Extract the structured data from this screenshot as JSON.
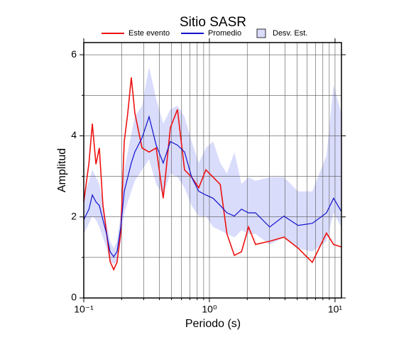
{
  "chart_data": {
    "type": "line",
    "title": "Sitio SASR",
    "xlabel": "Periodo (s)",
    "ylabel": "Amplitud",
    "xscale": "log",
    "grid": true,
    "x": [
      0.1,
      0.11,
      0.117,
      0.125,
      0.133,
      0.142,
      0.152,
      0.162,
      0.173,
      0.184,
      0.197,
      0.21,
      0.224,
      0.239,
      0.255,
      0.291,
      0.331,
      0.377,
      0.429,
      0.489,
      0.557,
      0.634,
      0.722,
      0.823,
      0.937,
      1.07,
      1.22,
      1.38,
      1.58,
      1.8,
      2.05,
      2.33,
      3.02,
      3.92,
      5.08,
      6.59,
      8.55,
      9.74,
      11.2
    ],
    "series": [
      {
        "name": "Este evento",
        "color": "#ee1111",
        "values": [
          2.37,
          3.33,
          4.3,
          3.3,
          3.7,
          2.3,
          1.6,
          0.9,
          0.7,
          0.88,
          1.6,
          3.86,
          4.56,
          5.44,
          4.56,
          3.7,
          3.6,
          3.7,
          2.46,
          4.2,
          4.65,
          3.16,
          2.98,
          2.72,
          3.16,
          2.98,
          2.8,
          1.58,
          1.05,
          1.14,
          1.75,
          1.32,
          1.4,
          1.5,
          1.23,
          0.88,
          1.6,
          1.32,
          1.26
        ]
      },
      {
        "name": "Promedio",
        "color": "#1111cc",
        "values": [
          1.93,
          2.19,
          2.54,
          2.37,
          2.28,
          1.93,
          1.58,
          1.14,
          1.02,
          1.14,
          1.75,
          2.63,
          2.98,
          3.33,
          3.6,
          3.95,
          4.47,
          3.77,
          3.33,
          3.86,
          3.77,
          3.6,
          2.98,
          2.63,
          2.54,
          2.46,
          2.28,
          2.1,
          2.02,
          2.19,
          2.1,
          2.1,
          1.75,
          2.02,
          1.79,
          1.84,
          2.1,
          2.46,
          2.14
        ]
      },
      {
        "name": "Desv. Est.",
        "color": "#d9dcfb",
        "lower": [
          1.58,
          1.84,
          2.02,
          1.93,
          1.75,
          1.49,
          1.23,
          0.91,
          0.84,
          0.91,
          1.4,
          2.1,
          2.37,
          2.63,
          2.89,
          3.16,
          3.42,
          2.81,
          2.54,
          3.07,
          2.98,
          2.72,
          2.28,
          2.02,
          2.02,
          1.75,
          1.67,
          1.58,
          1.49,
          1.67,
          1.58,
          1.58,
          1.32,
          1.49,
          1.23,
          1.14,
          1.4,
          2.1,
          1.75
        ],
        "upper": [
          2.54,
          2.89,
          3.16,
          2.98,
          2.81,
          2.37,
          1.84,
          1.4,
          1.23,
          1.4,
          2.1,
          3.16,
          3.6,
          4.04,
          4.47,
          4.74,
          5.7,
          4.91,
          4.3,
          4.65,
          4.74,
          4.47,
          3.86,
          3.33,
          3.7,
          3.86,
          3.33,
          3.07,
          3.6,
          2.81,
          2.98,
          2.89,
          2.98,
          2.98,
          2.63,
          2.63,
          3.51,
          5.26,
          4.56
        ]
      }
    ],
    "xlim": [
      0.1,
      11.25
    ],
    "ylim": [
      0,
      6.3
    ],
    "xticks": [
      {
        "value": 0.1,
        "label": "10⁻¹"
      },
      {
        "value": 1,
        "label": "10⁰"
      },
      {
        "value": 10,
        "label": "10¹"
      }
    ],
    "xminor_ticks": [
      0.2,
      0.3,
      0.4,
      0.5,
      0.6,
      0.7,
      0.8,
      0.9,
      2,
      3,
      4,
      5,
      6,
      7,
      8,
      9
    ],
    "yticks": [
      0,
      2,
      4,
      6
    ],
    "yminor_ticks": [
      1,
      3,
      5
    ]
  }
}
